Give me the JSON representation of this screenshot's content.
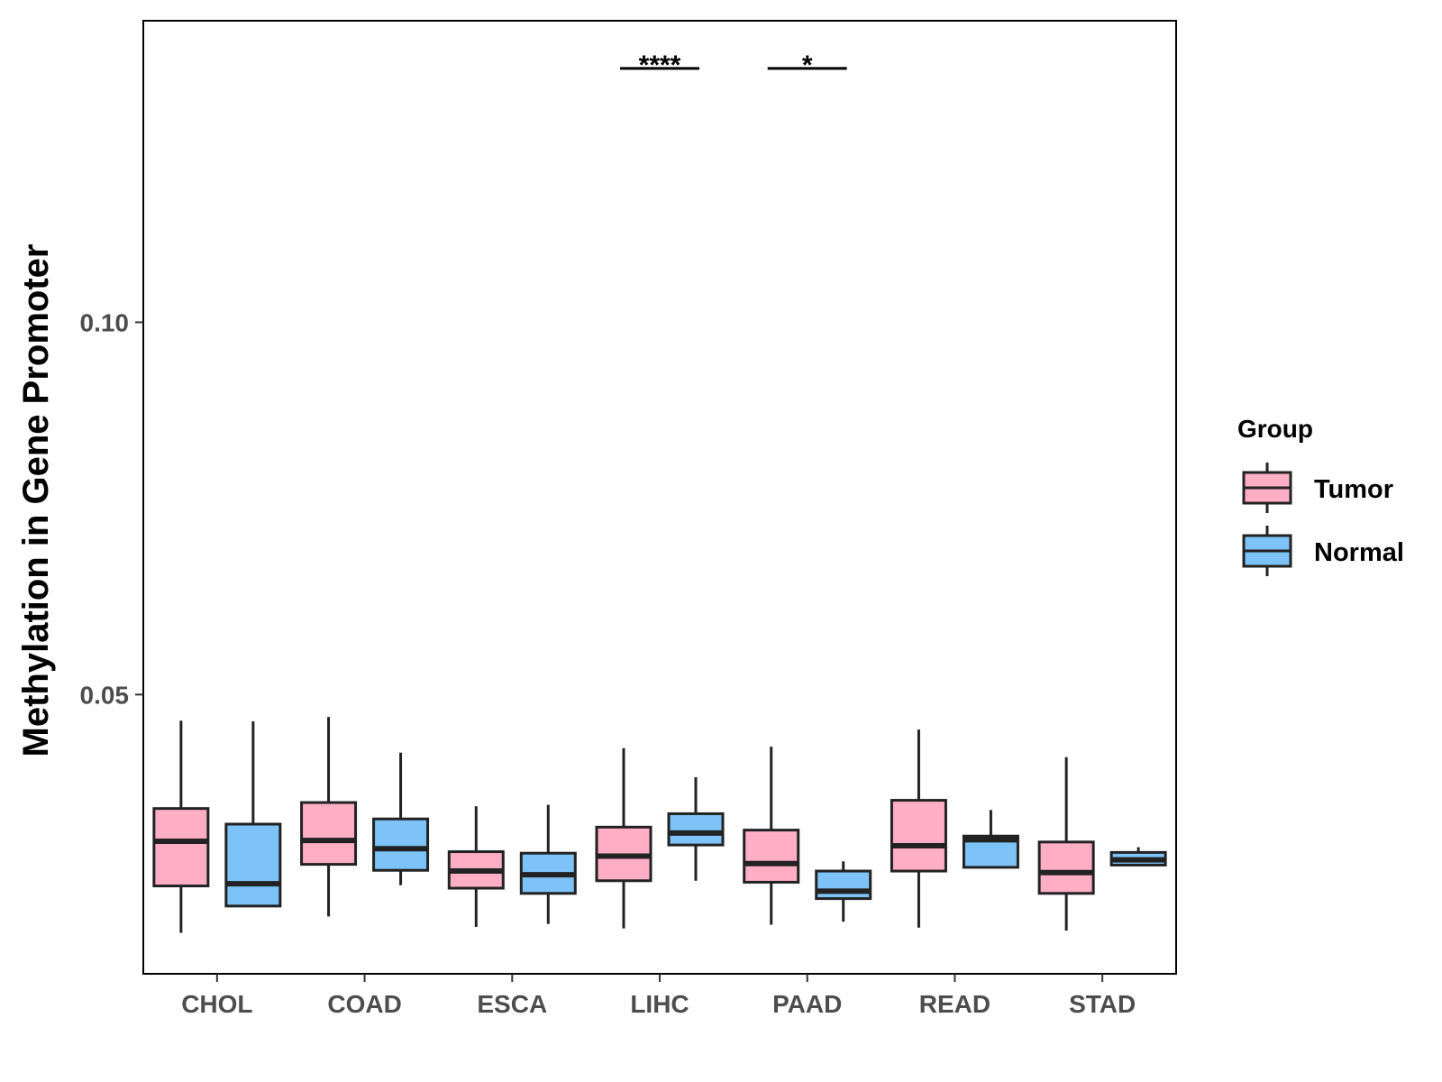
{
  "chart_data": {
    "type": "boxplot",
    "title": "",
    "xlabel": "",
    "ylabel": "Methylation in Gene Promoter",
    "ylim": [
      0.0125,
      0.1405
    ],
    "yticks": [
      0.05,
      0.1
    ],
    "ytick_labels": [
      "0.05",
      "0.10"
    ],
    "categories": [
      "CHOL",
      "COAD",
      "ESCA",
      "LIHC",
      "PAAD",
      "READ",
      "STAD"
    ],
    "legend": {
      "title": "Group",
      "position": "right",
      "entries": [
        {
          "name": "Tumor",
          "color": "#FFAEC5"
        },
        {
          "name": "Normal",
          "color": "#7DC3F7"
        }
      ]
    },
    "series": [
      {
        "name": "Tumor",
        "color": "#FFAEC5",
        "boxes": [
          {
            "whisker_low": 0.018,
            "q1": 0.0243,
            "median": 0.0303,
            "q3": 0.0347,
            "whisker_high": 0.0465
          },
          {
            "whisker_low": 0.0202,
            "q1": 0.0272,
            "median": 0.0304,
            "q3": 0.0355,
            "whisker_high": 0.047
          },
          {
            "whisker_low": 0.0188,
            "q1": 0.024,
            "median": 0.0263,
            "q3": 0.0289,
            "whisker_high": 0.035
          },
          {
            "whisker_low": 0.0186,
            "q1": 0.025,
            "median": 0.0283,
            "q3": 0.0322,
            "whisker_high": 0.0428
          },
          {
            "whisker_low": 0.0191,
            "q1": 0.0248,
            "median": 0.0273,
            "q3": 0.0318,
            "whisker_high": 0.043
          },
          {
            "whisker_low": 0.0187,
            "q1": 0.0263,
            "median": 0.0297,
            "q3": 0.0358,
            "whisker_high": 0.0453
          },
          {
            "whisker_low": 0.0183,
            "q1": 0.0233,
            "median": 0.0261,
            "q3": 0.0302,
            "whisker_high": 0.0416
          }
        ]
      },
      {
        "name": "Normal",
        "color": "#7DC3F7",
        "boxes": [
          {
            "whisker_low": null,
            "q1": 0.0216,
            "median": 0.0246,
            "q3": 0.0326,
            "whisker_high": 0.0464
          },
          {
            "whisker_low": 0.0244,
            "q1": 0.0264,
            "median": 0.0293,
            "q3": 0.0333,
            "whisker_high": 0.0422
          },
          {
            "whisker_low": 0.0192,
            "q1": 0.0233,
            "median": 0.0258,
            "q3": 0.0287,
            "whisker_high": 0.0352
          },
          {
            "whisker_low": 0.025,
            "q1": 0.0298,
            "median": 0.0314,
            "q3": 0.034,
            "whisker_high": 0.0389
          },
          {
            "whisker_low": 0.0195,
            "q1": 0.0226,
            "median": 0.0236,
            "q3": 0.0263,
            "whisker_high": 0.0276
          },
          {
            "whisker_low": 0.0267,
            "q1": 0.0268,
            "median": 0.0305,
            "q3": 0.031,
            "whisker_high": 0.0345
          },
          {
            "whisker_low": 0.027,
            "q1": 0.0271,
            "median": 0.0278,
            "q3": 0.0288,
            "whisker_high": 0.0295
          }
        ]
      }
    ],
    "annotations": [
      {
        "category": "LIHC",
        "label": "****",
        "y": 0.1341
      },
      {
        "category": "PAAD",
        "label": "*",
        "y": 0.1341
      }
    ]
  }
}
